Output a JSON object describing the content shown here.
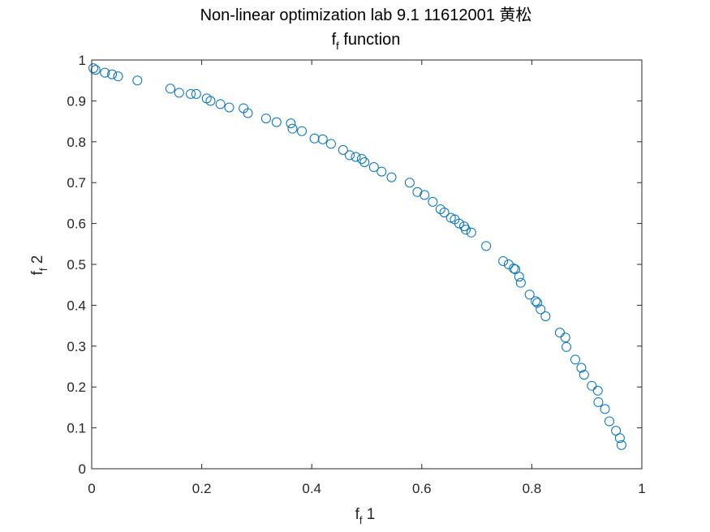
{
  "chart_data": {
    "type": "scatter",
    "title": "Non-linear optimization lab 9.1 11612001 黄松",
    "subtitle": {
      "main": "f",
      "sub": "f",
      "rest": " function"
    },
    "xlabel": {
      "main": "f",
      "sub": "f",
      "rest": " 1"
    },
    "ylabel": {
      "main": "f",
      "sub": "f",
      "rest": " 2"
    },
    "xlim": [
      0,
      1
    ],
    "ylim": [
      0,
      1
    ],
    "xticks": [
      "0",
      "0.2",
      "0.4",
      "0.6",
      "0.8",
      "1"
    ],
    "yticks": [
      "0",
      "0.1",
      "0.2",
      "0.3",
      "0.4",
      "0.5",
      "0.6",
      "0.7",
      "0.8",
      "0.9",
      "1"
    ],
    "grid": false,
    "marker_color": "#0072BD",
    "x": [
      0.003,
      0.007,
      0.024,
      0.037,
      0.048,
      0.083,
      0.143,
      0.159,
      0.18,
      0.19,
      0.209,
      0.216,
      0.234,
      0.25,
      0.276,
      0.284,
      0.317,
      0.336,
      0.362,
      0.365,
      0.382,
      0.405,
      0.42,
      0.435,
      0.457,
      0.469,
      0.48,
      0.491,
      0.496,
      0.513,
      0.527,
      0.545,
      0.578,
      0.592,
      0.605,
      0.62,
      0.634,
      0.641,
      0.653,
      0.66,
      0.668,
      0.677,
      0.68,
      0.69,
      0.717,
      0.748,
      0.758,
      0.767,
      0.77,
      0.777,
      0.78,
      0.796,
      0.807,
      0.81,
      0.816,
      0.825,
      0.851,
      0.861,
      0.863,
      0.879,
      0.89,
      0.895,
      0.909,
      0.92,
      0.921,
      0.933,
      0.941,
      0.953,
      0.96,
      0.963
    ],
    "y": [
      0.98,
      0.976,
      0.969,
      0.965,
      0.96,
      0.95,
      0.93,
      0.92,
      0.917,
      0.917,
      0.906,
      0.9,
      0.892,
      0.884,
      0.882,
      0.87,
      0.857,
      0.848,
      0.845,
      0.832,
      0.826,
      0.808,
      0.806,
      0.795,
      0.78,
      0.767,
      0.763,
      0.758,
      0.75,
      0.738,
      0.727,
      0.713,
      0.7,
      0.677,
      0.67,
      0.653,
      0.635,
      0.627,
      0.614,
      0.61,
      0.6,
      0.593,
      0.585,
      0.578,
      0.545,
      0.508,
      0.5,
      0.49,
      0.488,
      0.47,
      0.455,
      0.426,
      0.41,
      0.406,
      0.39,
      0.373,
      0.333,
      0.321,
      0.298,
      0.267,
      0.247,
      0.23,
      0.203,
      0.191,
      0.163,
      0.146,
      0.116,
      0.093,
      0.075,
      0.058
    ]
  }
}
